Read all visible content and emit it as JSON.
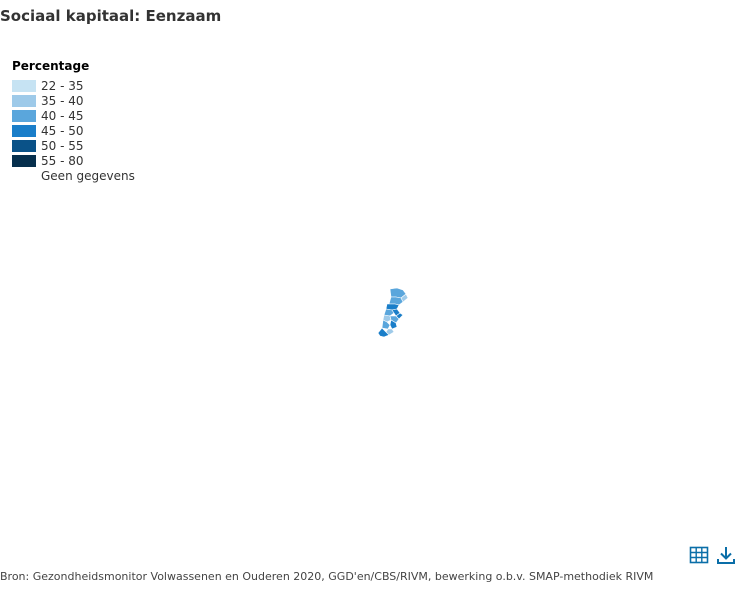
{
  "title": "Sociaal kapitaal: Eenzaam",
  "legend": {
    "title": "Percentage",
    "items": [
      {
        "label": "22 - 35",
        "color": "#c6e3f3"
      },
      {
        "label": "35 - 40",
        "color": "#9ecae9"
      },
      {
        "label": "40 - 45",
        "color": "#5aa6dc"
      },
      {
        "label": "45 - 50",
        "color": "#1a7ec9"
      },
      {
        "label": "50 - 55",
        "color": "#0a5288"
      },
      {
        "label": "55 - 80",
        "color": "#062f4d"
      },
      {
        "label": "Geen gegevens",
        "color": "#ffffff"
      }
    ]
  },
  "source": "Bron: Gezondheidsmonitor Volwassenen en Ouderen 2020, GGD'en/CBS/RIVM, bewerking o.b.v. SMAP-methodiek RIVM",
  "toolbar": {
    "table_icon": "table-icon",
    "download_icon": "download-icon",
    "icon_color": "#0a6ea8"
  }
}
